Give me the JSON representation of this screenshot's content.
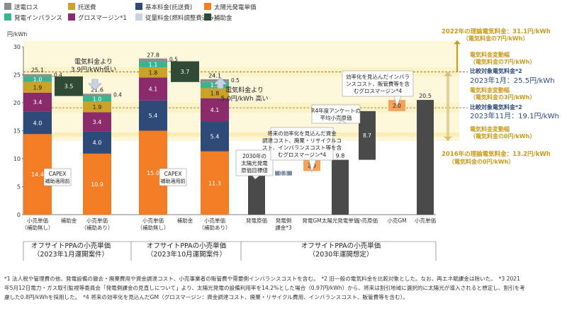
{
  "legend": [
    {
      "label": "送電ロス",
      "color": "#8c8c8c"
    },
    {
      "label": "託送費",
      "color": "#c9a227"
    },
    {
      "label": "基本料金(託送費)",
      "color": "#2e4a78"
    },
    {
      "label": "太陽光発電単価",
      "color": "#f27d24"
    },
    {
      "label": "発電インバランス",
      "color": "#3bb38f"
    },
    {
      "label": "グロスマージン*1",
      "color": "#8b2b6b"
    },
    {
      "label": "従量料金(燃料調整費込み)",
      "color": "#c9d3e4"
    },
    {
      "label": "補助金",
      "color": "#2f4a35"
    }
  ],
  "unit_label": "円/kWh",
  "y_ticks": [
    0,
    5,
    10,
    15,
    20,
    25,
    30
  ],
  "bands": [
    {
      "label": "2022年の理論電気料金：31.1円/kWh",
      "sub": "（電気料金の7円/kWh）",
      "y": 31.1
    },
    {
      "label": "2016年の理論電気料金：13.2円/kWh",
      "sub": "（電気料金の0円/kWh）",
      "y": 13.2
    }
  ],
  "reference_lines": [
    {
      "y": 25.5,
      "label": "2023年1月：25.5円/kWh",
      "heading": "比較対象電気料金*2"
    },
    {
      "y": 19.1,
      "label": "2023年11月：19.1円/kWh",
      "heading": "比較対象電気料金*2"
    }
  ],
  "right_notes": [
    "電気料金変動幅",
    "（電気料金の7円/kWh）",
    "電気料金変動幅",
    "（電気料金の3円/kWh）",
    "電気料金変動幅",
    "（電気料金の0円/kWh）"
  ],
  "chart_data": [
    {
      "type": "bar",
      "group_label": "オフサイトPPAの小売単価（2023年1月運開案件）",
      "categories": [
        "小売単価（補助無し）",
        "補助金",
        "小売単価（補助あり）"
      ],
      "series": [
        {
          "name": "太陽光発電単価",
          "values": [
            14.4,
            null,
            10.9
          ]
        },
        {
          "name": "基本料金(託送費)",
          "values": [
            4.0,
            null,
            4.0
          ]
        },
        {
          "name": "グロスマージン*1",
          "values": [
            3.4,
            null,
            3.4
          ]
        },
        {
          "name": "託送費",
          "values": [
            1.9,
            null,
            1.9
          ]
        },
        {
          "name": "発電インバランス",
          "values": [
            1.0,
            null,
            1.0
          ]
        },
        {
          "name": "送電ロス",
          "values": [
            0.4,
            null,
            0.4
          ]
        },
        {
          "name": "補助金",
          "values": [
            null,
            3.5,
            null
          ]
        }
      ],
      "totals": [
        25.1,
        null,
        21.6
      ],
      "annotations": [
        "CAPEX 補助適用前",
        "電気料金より 3.9円/kWh低い"
      ]
    },
    {
      "type": "bar",
      "group_label": "オフサイトPPAの小売単価（2023年10月運開案件）",
      "categories": [
        "小売単価（補助無し）",
        "補助金",
        "小売単価（補助あり）"
      ],
      "series": [
        {
          "name": "太陽光発電単価",
          "values": [
            15.0,
            null,
            11.3
          ]
        },
        {
          "name": "基本料金(託送費)",
          "values": [
            5.4,
            null,
            5.4
          ]
        },
        {
          "name": "グロスマージン*1",
          "values": [
            4.1,
            null,
            4.1
          ]
        },
        {
          "name": "託送費",
          "values": [
            1.8,
            null,
            1.8
          ]
        },
        {
          "name": "発電インバランス",
          "values": [
            1.1,
            null,
            1.1
          ]
        },
        {
          "name": "送電ロス",
          "values": [
            0.5,
            null,
            0.5
          ]
        },
        {
          "name": "補助金",
          "values": [
            null,
            3.7,
            null
          ]
        }
      ],
      "totals": [
        27.8,
        null,
        24.1
      ],
      "annotations": [
        "CAPEX 補助適用前",
        "電気料金より 5.0円/kWh 高い"
      ]
    },
    {
      "type": "waterfall",
      "group_label": "オフサイトPPAの小売単価（2030年運開想定）",
      "categories": [
        "発電原価",
        "発電側課金*3",
        "発電GM",
        "太陽光発電単価",
        "小売原価",
        "小売GM",
        "小売単価"
      ],
      "values": [
        7.0,
        0.8,
        2.0,
        9.8,
        8.7,
        2.0,
        20.5
      ],
      "annotations": [
        "2030年の 太陽光発電 原価目標値",
        "将来の効率化を見込んだ資金 調達コスト、廃棄・リサイクルコ スト、インバランスコスト等を含 むグロスマージン*4",
        "R4年度アンケートの 平均小売原価",
        "効率化を見込んだインバラ ンスコスト、販管費等を含 むグロスマージン*4"
      ]
    }
  ],
  "footnotes": [
    "*1 法人税や管理費の他、発電設備の撤去・廃棄費用や資金調達コスト、小売事業者の販管費や需要側インバランスコストを含む。　*2 旧一般の電気料金を比較対象とした。なお、再エネ賦課金は除いた。　*3 2021",
    "年5月12日電力・ガス取引監視等委員会「発電側課金の見直しについて」より、太陽光発電の設備利用率を14.2%とした場合（0.97円/kWh）から、将来は割引地域に選択的に太陽光が導入されると想定し、割引を考",
    "慮した0.8円/kWhを採用した。　*4 将来の効率化を見込んだGM（グロスマージン：資金調達コスト、廃棄・リサイクル費用、インバランスコスト、販管費等を含む）。"
  ]
}
